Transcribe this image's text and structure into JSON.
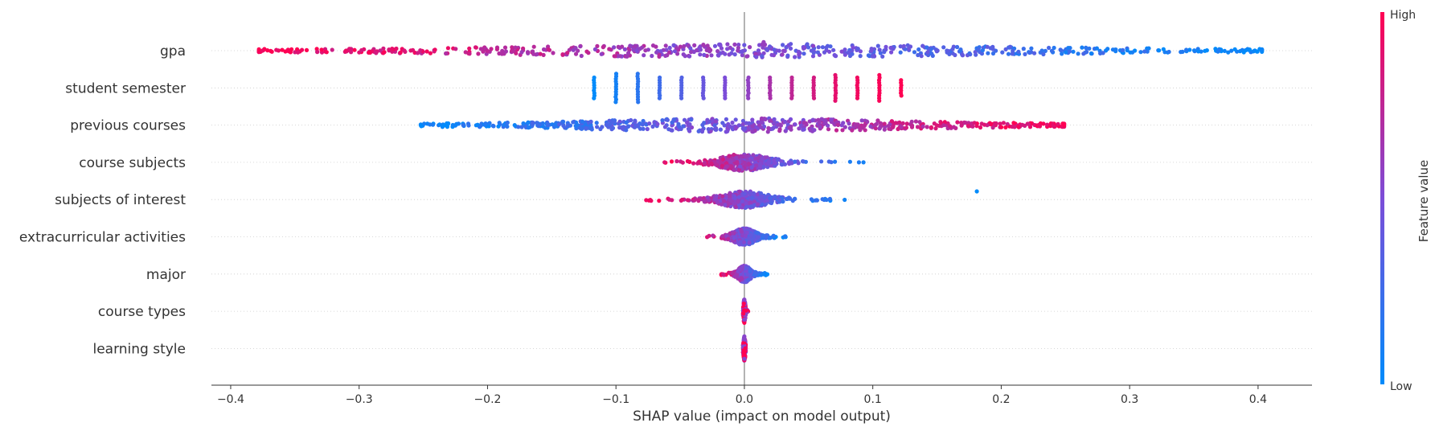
{
  "chart_data": {
    "type": "scatter",
    "subtype": "shap-beeswarm",
    "title": "",
    "xlabel": "SHAP value (impact on model output)",
    "xlim": [
      -0.415,
      0.442
    ],
    "xticks": [
      -0.4,
      -0.3,
      -0.2,
      -0.1,
      0.0,
      0.1,
      0.2,
      0.3,
      0.4
    ],
    "xtick_labels": [
      "−0.4",
      "−0.3",
      "−0.2",
      "−0.1",
      "0.0",
      "0.1",
      "0.2",
      "0.3",
      "0.4"
    ],
    "grid": false,
    "zero_line": true,
    "colorbar": {
      "title": "Feature value",
      "high_label": "High",
      "low_label": "Low",
      "low_color": "#008bfb",
      "mid_color": "#7c4dd8",
      "high_color": "#ff0052"
    },
    "features": [
      {
        "name": "gpa",
        "min": -0.378,
        "max": 0.403,
        "spread": "wide",
        "trend": "negative",
        "density_peak": 0.013,
        "extra_points": [
          {
            "x": 0.015,
            "c": 0.6
          },
          {
            "x": 0.016,
            "c": 0.6
          },
          {
            "x": 0.014,
            "c": 0.6
          }
        ]
      },
      {
        "name": "student semester",
        "type": "discrete",
        "trend": "positive",
        "groups": [
          {
            "x": -0.117,
            "c": 0.0,
            "n": 9
          },
          {
            "x": -0.1,
            "c": 0.08,
            "n": 12
          },
          {
            "x": -0.083,
            "c": 0.17,
            "n": 12
          },
          {
            "x": -0.066,
            "c": 0.25,
            "n": 9
          },
          {
            "x": -0.049,
            "c": 0.33,
            "n": 9
          },
          {
            "x": -0.032,
            "c": 0.42,
            "n": 9
          },
          {
            "x": -0.015,
            "c": 0.5,
            "n": 9
          },
          {
            "x": 0.003,
            "c": 0.58,
            "n": 9
          },
          {
            "x": 0.02,
            "c": 0.67,
            "n": 9
          },
          {
            "x": 0.037,
            "c": 0.75,
            "n": 9
          },
          {
            "x": 0.054,
            "c": 0.83,
            "n": 9
          },
          {
            "x": 0.071,
            "c": 0.9,
            "n": 11
          },
          {
            "x": 0.088,
            "c": 0.95,
            "n": 9
          },
          {
            "x": 0.105,
            "c": 0.98,
            "n": 11
          },
          {
            "x": 0.122,
            "c": 1.0,
            "n": 7
          }
        ]
      },
      {
        "name": "previous courses",
        "min": -0.252,
        "max": 0.249,
        "spread": "wide",
        "trend": "positive",
        "density_peak": 0.003
      },
      {
        "name": "course subjects",
        "min": -0.065,
        "max": 0.1,
        "spread": "narrow",
        "trend": "negative",
        "density_peak": 0.0
      },
      {
        "name": "subjects of interest",
        "min": -0.078,
        "max": 0.08,
        "spread": "narrow",
        "trend": "negative",
        "density_peak": 0.0,
        "extra_points": [
          {
            "x": 0.181,
            "c": 0.0
          }
        ]
      },
      {
        "name": "extracurricular activities",
        "min": -0.04,
        "max": 0.034,
        "spread": "narrow",
        "trend": "negative",
        "density_peak": 0.0
      },
      {
        "name": "major",
        "min": -0.018,
        "max": 0.018,
        "spread": "narrow",
        "trend": "negative",
        "density_peak": 0.0
      },
      {
        "name": "course types",
        "min": -0.001,
        "max": 0.003,
        "spread": "tiny",
        "trend": "mixed",
        "density_peak": 0.0
      },
      {
        "name": "learning style",
        "min": -0.001,
        "max": 0.001,
        "spread": "tiny",
        "trend": "mixed",
        "density_peak": 0.0
      }
    ]
  }
}
